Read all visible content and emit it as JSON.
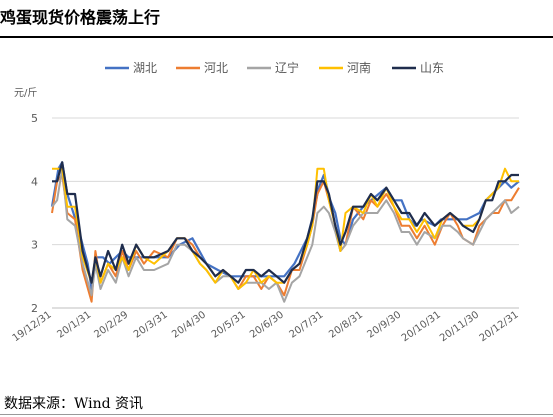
{
  "title": "鸡蛋现货价格震荡上行",
  "source": "数据来源：Wind 资讯",
  "chart_data": {
    "type": "line",
    "ylabel": "元/斤",
    "ylim": [
      2,
      5
    ],
    "yticks": [
      2,
      3,
      4,
      5
    ],
    "legend_position": "top-center",
    "grid": "horizontal",
    "x_tick_labels": [
      "19/12/31",
      "20/1/31",
      "20/2/29",
      "20/3/31",
      "20/4/30",
      "20/5/31",
      "20/6/30",
      "20/7/31",
      "20/8/31",
      "20/9/30",
      "20/10/31",
      "20/11/30",
      "20/12/31"
    ],
    "x_tick_positions": [
      0,
      31,
      60,
      91,
      121,
      152,
      182,
      213,
      244,
      274,
      305,
      335,
      366
    ],
    "x_max": 366,
    "series": [
      {
        "name": "湖北",
        "color": "#4472C4",
        "width": 2.2,
        "points": [
          [
            0,
            3.6
          ],
          [
            5,
            4.2
          ],
          [
            8,
            4.3
          ],
          [
            12,
            3.8
          ],
          [
            20,
            3.3
          ],
          [
            28,
            2.7
          ],
          [
            31,
            2.3
          ],
          [
            35,
            2.8
          ],
          [
            40,
            2.8
          ],
          [
            45,
            2.7
          ],
          [
            50,
            2.8
          ],
          [
            55,
            2.9
          ],
          [
            60,
            2.8
          ],
          [
            70,
            2.8
          ],
          [
            80,
            2.8
          ],
          [
            91,
            2.8
          ],
          [
            100,
            3.0
          ],
          [
            110,
            3.1
          ],
          [
            121,
            2.7
          ],
          [
            130,
            2.6
          ],
          [
            140,
            2.5
          ],
          [
            152,
            2.5
          ],
          [
            160,
            2.5
          ],
          [
            170,
            2.5
          ],
          [
            182,
            2.5
          ],
          [
            190,
            2.7
          ],
          [
            195,
            2.9
          ],
          [
            200,
            3.1
          ],
          [
            205,
            3.5
          ],
          [
            209,
            3.9
          ],
          [
            213,
            4.1
          ],
          [
            218,
            3.7
          ],
          [
            222,
            3.5
          ],
          [
            226,
            3.1
          ],
          [
            230,
            3.0
          ],
          [
            236,
            3.4
          ],
          [
            244,
            3.6
          ],
          [
            250,
            3.7
          ],
          [
            256,
            3.8
          ],
          [
            262,
            3.9
          ],
          [
            268,
            3.7
          ],
          [
            274,
            3.7
          ],
          [
            280,
            3.4
          ],
          [
            285,
            3.3
          ],
          [
            290,
            3.4
          ],
          [
            300,
            3.3
          ],
          [
            305,
            3.4
          ],
          [
            310,
            3.4
          ],
          [
            318,
            3.4
          ],
          [
            325,
            3.4
          ],
          [
            335,
            3.5
          ],
          [
            340,
            3.7
          ],
          [
            345,
            3.8
          ],
          [
            350,
            3.9
          ],
          [
            355,
            4.0
          ],
          [
            360,
            3.9
          ],
          [
            366,
            4.0
          ]
        ]
      },
      {
        "name": "河北",
        "color": "#ED7D31",
        "width": 2,
        "points": [
          [
            0,
            3.5
          ],
          [
            4,
            4.0
          ],
          [
            8,
            4.1
          ],
          [
            12,
            3.5
          ],
          [
            18,
            3.4
          ],
          [
            24,
            2.6
          ],
          [
            31,
            2.1
          ],
          [
            34,
            2.9
          ],
          [
            38,
            2.4
          ],
          [
            44,
            2.7
          ],
          [
            50,
            2.5
          ],
          [
            55,
            2.9
          ],
          [
            60,
            2.6
          ],
          [
            66,
            2.9
          ],
          [
            72,
            2.7
          ],
          [
            80,
            2.9
          ],
          [
            91,
            2.8
          ],
          [
            98,
            3.1
          ],
          [
            104,
            3.1
          ],
          [
            110,
            3.0
          ],
          [
            116,
            2.8
          ],
          [
            121,
            2.7
          ],
          [
            128,
            2.5
          ],
          [
            134,
            2.6
          ],
          [
            140,
            2.5
          ],
          [
            146,
            2.3
          ],
          [
            152,
            2.5
          ],
          [
            158,
            2.5
          ],
          [
            164,
            2.3
          ],
          [
            170,
            2.5
          ],
          [
            176,
            2.4
          ],
          [
            182,
            2.2
          ],
          [
            188,
            2.6
          ],
          [
            194,
            2.6
          ],
          [
            200,
            3.0
          ],
          [
            204,
            3.3
          ],
          [
            208,
            3.8
          ],
          [
            213,
            4.0
          ],
          [
            217,
            3.7
          ],
          [
            222,
            3.3
          ],
          [
            226,
            2.9
          ],
          [
            230,
            3.0
          ],
          [
            236,
            3.6
          ],
          [
            244,
            3.4
          ],
          [
            250,
            3.7
          ],
          [
            255,
            3.6
          ],
          [
            262,
            3.8
          ],
          [
            268,
            3.6
          ],
          [
            274,
            3.3
          ],
          [
            280,
            3.3
          ],
          [
            286,
            3.1
          ],
          [
            292,
            3.3
          ],
          [
            300,
            3.0
          ],
          [
            306,
            3.3
          ],
          [
            312,
            3.5
          ],
          [
            318,
            3.3
          ],
          [
            322,
            3.1
          ],
          [
            330,
            3.0
          ],
          [
            335,
            3.3
          ],
          [
            340,
            3.4
          ],
          [
            345,
            3.5
          ],
          [
            350,
            3.5
          ],
          [
            355,
            3.7
          ],
          [
            360,
            3.7
          ],
          [
            366,
            3.9
          ]
        ]
      },
      {
        "name": "辽宁",
        "color": "#A5A5A5",
        "width": 2,
        "points": [
          [
            0,
            3.6
          ],
          [
            4,
            3.7
          ],
          [
            8,
            4.2
          ],
          [
            12,
            3.4
          ],
          [
            18,
            3.3
          ],
          [
            24,
            2.7
          ],
          [
            31,
            2.2
          ],
          [
            34,
            2.7
          ],
          [
            38,
            2.3
          ],
          [
            44,
            2.6
          ],
          [
            50,
            2.4
          ],
          [
            55,
            2.8
          ],
          [
            60,
            2.5
          ],
          [
            66,
            2.8
          ],
          [
            72,
            2.6
          ],
          [
            80,
            2.6
          ],
          [
            91,
            2.7
          ],
          [
            98,
            3.0
          ],
          [
            104,
            3.0
          ],
          [
            110,
            2.9
          ],
          [
            116,
            2.7
          ],
          [
            121,
            2.6
          ],
          [
            128,
            2.4
          ],
          [
            134,
            2.5
          ],
          [
            140,
            2.5
          ],
          [
            146,
            2.3
          ],
          [
            152,
            2.4
          ],
          [
            158,
            2.4
          ],
          [
            164,
            2.4
          ],
          [
            170,
            2.3
          ],
          [
            176,
            2.4
          ],
          [
            182,
            2.1
          ],
          [
            188,
            2.4
          ],
          [
            194,
            2.5
          ],
          [
            200,
            2.8
          ],
          [
            204,
            3.0
          ],
          [
            208,
            3.5
          ],
          [
            213,
            3.6
          ],
          [
            217,
            3.5
          ],
          [
            222,
            3.2
          ],
          [
            226,
            2.9
          ],
          [
            230,
            3.0
          ],
          [
            236,
            3.3
          ],
          [
            244,
            3.5
          ],
          [
            250,
            3.5
          ],
          [
            255,
            3.5
          ],
          [
            262,
            3.7
          ],
          [
            268,
            3.5
          ],
          [
            274,
            3.2
          ],
          [
            280,
            3.2
          ],
          [
            286,
            3.0
          ],
          [
            292,
            3.2
          ],
          [
            300,
            3.1
          ],
          [
            306,
            3.3
          ],
          [
            312,
            3.3
          ],
          [
            318,
            3.2
          ],
          [
            322,
            3.1
          ],
          [
            330,
            3.0
          ],
          [
            335,
            3.2
          ],
          [
            340,
            3.4
          ],
          [
            345,
            3.5
          ],
          [
            350,
            3.6
          ],
          [
            355,
            3.7
          ],
          [
            360,
            3.5
          ],
          [
            366,
            3.6
          ]
        ]
      },
      {
        "name": "河南",
        "color": "#FFC000",
        "width": 2,
        "points": [
          [
            0,
            4.2
          ],
          [
            4,
            4.2
          ],
          [
            8,
            4.2
          ],
          [
            12,
            3.6
          ],
          [
            18,
            3.6
          ],
          [
            24,
            2.8
          ],
          [
            31,
            2.4
          ],
          [
            34,
            2.8
          ],
          [
            38,
            2.4
          ],
          [
            44,
            2.7
          ],
          [
            50,
            2.6
          ],
          [
            55,
            2.8
          ],
          [
            60,
            2.6
          ],
          [
            66,
            3.0
          ],
          [
            72,
            2.8
          ],
          [
            80,
            2.7
          ],
          [
            91,
            2.9
          ],
          [
            98,
            3.1
          ],
          [
            104,
            3.1
          ],
          [
            110,
            2.9
          ],
          [
            116,
            2.7
          ],
          [
            121,
            2.6
          ],
          [
            128,
            2.4
          ],
          [
            134,
            2.6
          ],
          [
            140,
            2.5
          ],
          [
            146,
            2.3
          ],
          [
            152,
            2.4
          ],
          [
            158,
            2.6
          ],
          [
            164,
            2.4
          ],
          [
            170,
            2.5
          ],
          [
            176,
            2.4
          ],
          [
            182,
            2.4
          ],
          [
            188,
            2.6
          ],
          [
            194,
            2.7
          ],
          [
            200,
            3.0
          ],
          [
            204,
            3.3
          ],
          [
            208,
            4.2
          ],
          [
            213,
            4.2
          ],
          [
            217,
            3.7
          ],
          [
            222,
            3.3
          ],
          [
            226,
            2.9
          ],
          [
            230,
            3.5
          ],
          [
            236,
            3.6
          ],
          [
            244,
            3.5
          ],
          [
            250,
            3.8
          ],
          [
            255,
            3.6
          ],
          [
            262,
            3.9
          ],
          [
            268,
            3.6
          ],
          [
            274,
            3.4
          ],
          [
            280,
            3.4
          ],
          [
            286,
            3.2
          ],
          [
            292,
            3.4
          ],
          [
            300,
            3.1
          ],
          [
            306,
            3.4
          ],
          [
            312,
            3.5
          ],
          [
            318,
            3.4
          ],
          [
            322,
            3.3
          ],
          [
            330,
            3.3
          ],
          [
            335,
            3.4
          ],
          [
            340,
            3.7
          ],
          [
            345,
            3.8
          ],
          [
            350,
            3.9
          ],
          [
            355,
            4.2
          ],
          [
            360,
            4.0
          ],
          [
            366,
            4.0
          ]
        ]
      },
      {
        "name": "山东",
        "color": "#1F2D4D",
        "width": 2.2,
        "points": [
          [
            0,
            4.0
          ],
          [
            4,
            4.0
          ],
          [
            8,
            4.3
          ],
          [
            12,
            3.8
          ],
          [
            18,
            3.8
          ],
          [
            24,
            2.9
          ],
          [
            31,
            2.4
          ],
          [
            34,
            2.8
          ],
          [
            38,
            2.5
          ],
          [
            44,
            2.9
          ],
          [
            50,
            2.6
          ],
          [
            55,
            3.0
          ],
          [
            60,
            2.7
          ],
          [
            66,
            3.0
          ],
          [
            72,
            2.8
          ],
          [
            80,
            2.8
          ],
          [
            91,
            2.9
          ],
          [
            98,
            3.1
          ],
          [
            104,
            3.1
          ],
          [
            110,
            2.9
          ],
          [
            116,
            2.8
          ],
          [
            121,
            2.7
          ],
          [
            128,
            2.5
          ],
          [
            134,
            2.6
          ],
          [
            140,
            2.5
          ],
          [
            146,
            2.4
          ],
          [
            152,
            2.6
          ],
          [
            158,
            2.6
          ],
          [
            164,
            2.5
          ],
          [
            170,
            2.6
          ],
          [
            176,
            2.5
          ],
          [
            182,
            2.4
          ],
          [
            188,
            2.6
          ],
          [
            194,
            2.7
          ],
          [
            200,
            3.1
          ],
          [
            204,
            3.4
          ],
          [
            208,
            4.0
          ],
          [
            213,
            4.0
          ],
          [
            217,
            3.8
          ],
          [
            222,
            3.3
          ],
          [
            226,
            3.0
          ],
          [
            230,
            3.2
          ],
          [
            236,
            3.6
          ],
          [
            244,
            3.6
          ],
          [
            250,
            3.8
          ],
          [
            255,
            3.7
          ],
          [
            262,
            3.9
          ],
          [
            268,
            3.7
          ],
          [
            274,
            3.5
          ],
          [
            280,
            3.5
          ],
          [
            286,
            3.3
          ],
          [
            292,
            3.5
          ],
          [
            300,
            3.3
          ],
          [
            306,
            3.4
          ],
          [
            312,
            3.5
          ],
          [
            318,
            3.4
          ],
          [
            322,
            3.3
          ],
          [
            330,
            3.2
          ],
          [
            335,
            3.4
          ],
          [
            340,
            3.7
          ],
          [
            345,
            3.7
          ],
          [
            350,
            4.0
          ],
          [
            355,
            4.0
          ],
          [
            360,
            4.1
          ],
          [
            366,
            4.1
          ]
        ]
      }
    ]
  }
}
